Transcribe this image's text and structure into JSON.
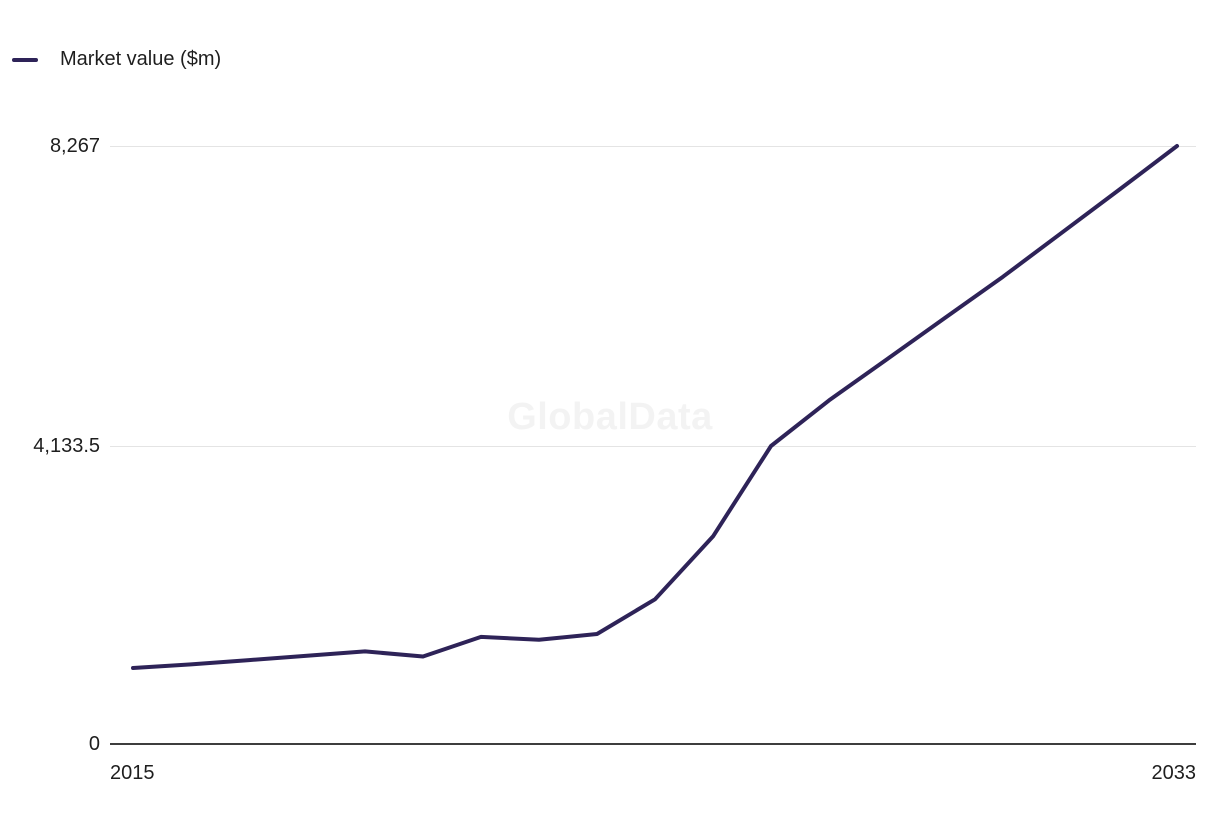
{
  "chart_data": {
    "type": "line",
    "title": "",
    "legend_position": "top-left",
    "grid": "horizontal",
    "watermark": "GlobalData",
    "background": "#ffffff",
    "line_color": "#2e2358",
    "xlabel": "",
    "ylabel": "",
    "xlim": [
      2015,
      2033
    ],
    "ylim": [
      0,
      8267
    ],
    "yticks": [
      {
        "value": 8267,
        "label": "8,267"
      },
      {
        "value": 4133.5,
        "label": "4,133.5"
      },
      {
        "value": 0,
        "label": "0"
      }
    ],
    "xticks": [
      {
        "value": 2015,
        "label": "2015"
      },
      {
        "value": 2033,
        "label": "2033"
      }
    ],
    "series": [
      {
        "name": "Market value ($m)",
        "x": [
          2015,
          2016,
          2017,
          2018,
          2019,
          2020,
          2021,
          2022,
          2023,
          2024,
          2025,
          2026,
          2027,
          2028,
          2029,
          2030,
          2031,
          2032,
          2033
        ],
        "values": [
          1050,
          1100,
          1160,
          1220,
          1280,
          1210,
          1480,
          1440,
          1520,
          2000,
          2870,
          4120,
          4750,
          5320,
          5890,
          6460,
          7060,
          7660,
          8267
        ]
      }
    ]
  }
}
